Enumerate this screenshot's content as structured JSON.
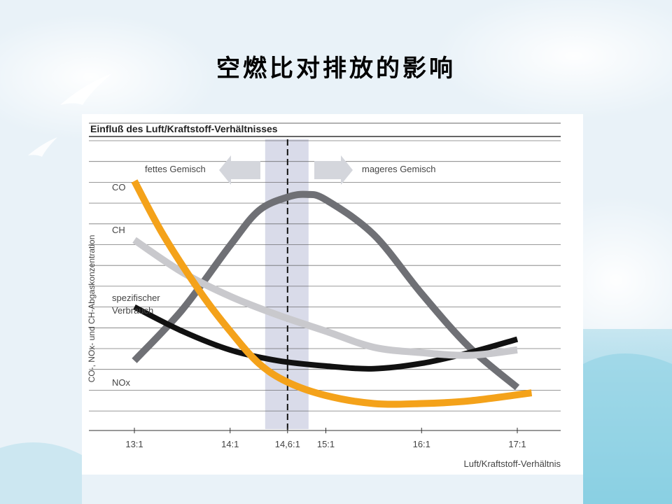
{
  "slide": {
    "title": "空燃比对排放的影响"
  },
  "figure": {
    "header": "Einfluß des Luft/Kraftstoff-Verhältnisses",
    "arrow_left_label": "fettes Gemisch",
    "arrow_right_label": "mageres Gemisch",
    "y_axis_label": "CO-, NOx- und CH-Abgaskonzentration",
    "x_axis_label": "Luft/Kraftstoff-Verhältnis",
    "curve_labels": {
      "co": "CO",
      "ch": "CH",
      "verbrauch_line1": "spezifischer",
      "verbrauch_line2": "Verbrauch",
      "nox": "NOx"
    },
    "colors": {
      "co": "#f4a21a",
      "ch": "#c9c9cd",
      "nox": "#6f7075",
      "verbrauch": "#111111",
      "stoich_band": "#c9cce0"
    }
  },
  "chart_data": {
    "type": "line",
    "xlabel": "Luft/Kraftstoff-Verhältnis",
    "ylabel": "CO-, NOx- und CH-Abgaskonzentration",
    "x_ticks": [
      "13:1",
      "14:1",
      "14,6:1",
      "15:1",
      "16:1",
      "17:1"
    ],
    "x_tick_values": [
      13,
      14,
      14.6,
      15,
      16,
      17
    ],
    "xlim": [
      12.6,
      17.6
    ],
    "ylim": [
      0,
      10
    ],
    "stoichiometric_ratio": 14.6,
    "series": [
      {
        "name": "CO",
        "x": [
          13,
          13.3,
          13.7,
          14,
          14.3,
          14.6,
          15,
          15.5,
          16,
          16.5,
          17.15
        ],
        "y": [
          9.2,
          7.2,
          5.0,
          3.6,
          2.4,
          1.7,
          1.2,
          0.9,
          0.9,
          1.0,
          1.3
        ]
      },
      {
        "name": "CH",
        "x": [
          13,
          13.5,
          14,
          14.5,
          15,
          15.5,
          16,
          16.5,
          17
        ],
        "y": [
          7.0,
          5.8,
          4.9,
          4.2,
          3.6,
          3.0,
          2.8,
          2.7,
          2.9
        ]
      },
      {
        "name": "spezifischer Verbrauch",
        "x": [
          13,
          13.5,
          14,
          14.5,
          15,
          15.5,
          16,
          16.5,
          17
        ],
        "y": [
          4.5,
          3.6,
          2.9,
          2.5,
          2.3,
          2.2,
          2.4,
          2.8,
          3.3
        ]
      },
      {
        "name": "NOx",
        "x": [
          13,
          13.5,
          14,
          14.3,
          14.6,
          14.8,
          15,
          15.5,
          16,
          16.5,
          17
        ],
        "y": [
          2.5,
          4.4,
          6.8,
          8.1,
          8.6,
          8.7,
          8.5,
          7.2,
          5.0,
          3.0,
          1.5
        ]
      }
    ]
  }
}
